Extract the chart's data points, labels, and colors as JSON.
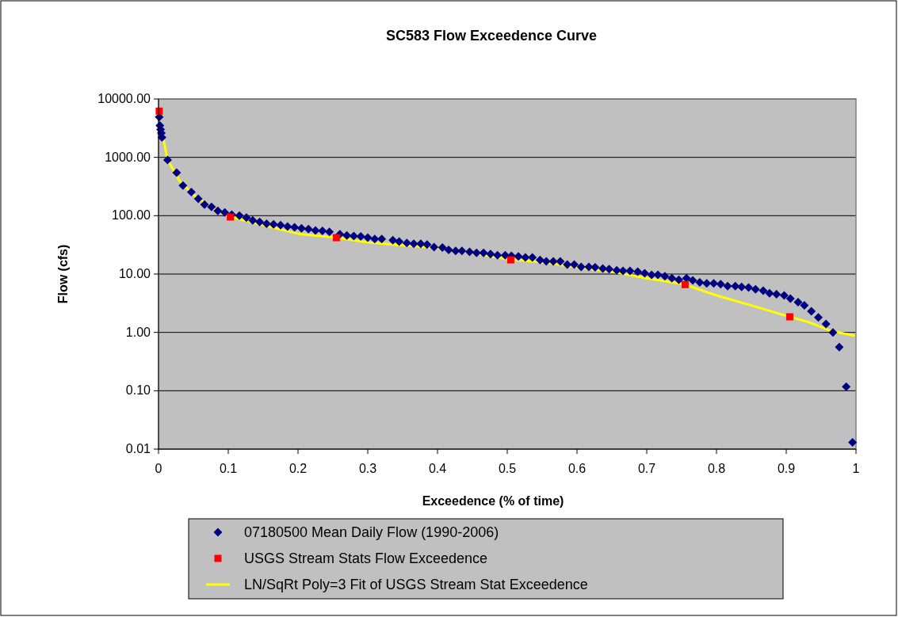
{
  "chart_data": {
    "type": "scatter",
    "title": "SC583 Flow Exceedence Curve",
    "xlabel": "Exceedence (% of time)",
    "ylabel": "Flow (cfs)",
    "log": "y",
    "grid": "y",
    "legend": "bottom",
    "xlim": [
      0,
      1
    ],
    "xticks": [
      0,
      0.1,
      0.2,
      0.3,
      0.4,
      0.5,
      0.6,
      0.7,
      0.8,
      0.9,
      1
    ],
    "ylim": [
      0.01,
      10000
    ],
    "yticks": [
      {
        "value": 0.01,
        "label": "0.01"
      },
      {
        "value": 0.1,
        "label": "0.10"
      },
      {
        "value": 1,
        "label": "1.00"
      },
      {
        "value": 10,
        "label": "10.00"
      },
      {
        "value": 100,
        "label": "100.00"
      },
      {
        "value": 1000,
        "label": "1000.00"
      },
      {
        "value": 10000,
        "label": "10000.00"
      }
    ],
    "series": [
      {
        "name": "07180500 Mean Daily Flow (1990-2006)",
        "marker": "diamond",
        "color": "#000080",
        "x": [
          0.001,
          0.002,
          0.003,
          0.004,
          0.005,
          0.013,
          0.026,
          0.035,
          0.047,
          0.057,
          0.066,
          0.076,
          0.085,
          0.095,
          0.105,
          0.116,
          0.126,
          0.135,
          0.145,
          0.155,
          0.165,
          0.175,
          0.185,
          0.195,
          0.205,
          0.215,
          0.225,
          0.235,
          0.245,
          0.26,
          0.27,
          0.28,
          0.29,
          0.3,
          0.31,
          0.32,
          0.336,
          0.345,
          0.356,
          0.366,
          0.376,
          0.385,
          0.395,
          0.407,
          0.416,
          0.426,
          0.435,
          0.446,
          0.456,
          0.466,
          0.476,
          0.486,
          0.497,
          0.506,
          0.516,
          0.526,
          0.536,
          0.547,
          0.556,
          0.566,
          0.576,
          0.586,
          0.596,
          0.606,
          0.617,
          0.626,
          0.637,
          0.646,
          0.657,
          0.666,
          0.676,
          0.687,
          0.697,
          0.707,
          0.716,
          0.726,
          0.736,
          0.746,
          0.757,
          0.766,
          0.776,
          0.786,
          0.796,
          0.806,
          0.816,
          0.827,
          0.836,
          0.846,
          0.856,
          0.867,
          0.876,
          0.886,
          0.897,
          0.906,
          0.917,
          0.926,
          0.936,
          0.946,
          0.957,
          0.967,
          0.976,
          0.986,
          0.995
        ],
        "values": [
          4900,
          3500,
          3000,
          2600,
          2200,
          900,
          545,
          330,
          255,
          195,
          155,
          141,
          121,
          114,
          104,
          100,
          93,
          83,
          78,
          73,
          71,
          69,
          65,
          63,
          61,
          59,
          56,
          55,
          53,
          48,
          46,
          45,
          44,
          42,
          40,
          40,
          38,
          36,
          34,
          33,
          33,
          32,
          29,
          28.5,
          26,
          25,
          25,
          24,
          23,
          23,
          22,
          21,
          21,
          20.5,
          20,
          19.3,
          19.3,
          17.4,
          16.5,
          16.5,
          16.5,
          14.5,
          14.5,
          13.2,
          13.2,
          13,
          12.4,
          12.2,
          11.6,
          11.3,
          11.3,
          11,
          10.3,
          9.7,
          9.7,
          9.2,
          8.5,
          8,
          8.5,
          7.8,
          7.2,
          6.9,
          6.9,
          6.7,
          6.2,
          6.2,
          6,
          5.9,
          5.5,
          5.2,
          4.7,
          4.5,
          4.3,
          3.8,
          3.3,
          2.9,
          2.3,
          1.8,
          1.4,
          1,
          0.56,
          0.117,
          0.013
        ]
      },
      {
        "name": "USGS Stream Stats Flow Exceedence",
        "marker": "square",
        "color": "#ff0000",
        "x": [
          0.001,
          0.103,
          0.255,
          0.505,
          0.755,
          0.905
        ],
        "values": [
          6200,
          95,
          42,
          17.5,
          6.6,
          1.85
        ]
      },
      {
        "name": "LN/SqRt Poly=3 Fit of USGS Stream Stat Exceedence",
        "type": "line",
        "marker": "none",
        "color": "#ffff00",
        "x": [
          0.003,
          0.008,
          0.013,
          0.03,
          0.05,
          0.075,
          0.1,
          0.15,
          0.2,
          0.255,
          0.3,
          0.35,
          0.4,
          0.45,
          0.5,
          0.55,
          0.6,
          0.65,
          0.7,
          0.755,
          0.8,
          0.85,
          0.905,
          0.932,
          0.962,
          0.997
        ],
        "values": [
          3000,
          1800,
          900,
          400,
          230,
          140,
          98,
          69,
          49,
          42,
          35,
          31,
          28,
          23,
          18,
          16,
          13,
          11,
          8.5,
          6.6,
          4.3,
          2.9,
          1.85,
          1.5,
          1.08,
          0.88
        ]
      }
    ]
  }
}
